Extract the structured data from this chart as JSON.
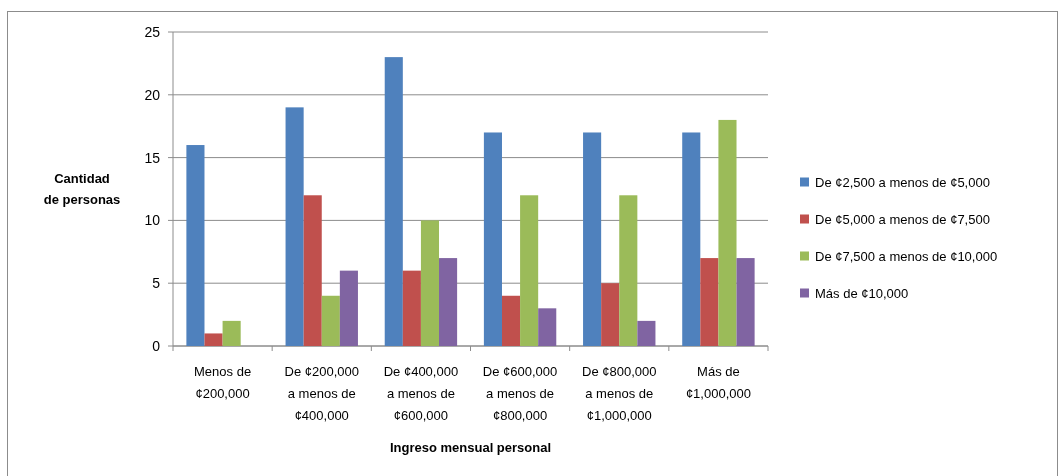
{
  "chart_data": {
    "type": "bar",
    "xlabel": "Ingreso mensual personal",
    "ylabel": "Cantidad de personas",
    "categories": [
      "Menos de ¢200,000",
      "De ¢200,000 a menos de ¢400,000",
      "De ¢400,000 a menos de ¢600,000",
      "De ¢600,000 a menos de ¢800,000",
      "De ¢800,000 a menos de ¢1,000,000",
      "Más de ¢1,000,000"
    ],
    "series": [
      {
        "name": "De ¢2,500 a menos de ¢5,000",
        "color": "#4f81bd",
        "values": [
          16,
          19,
          23,
          17,
          17,
          17
        ]
      },
      {
        "name": "De ¢5,000 a menos de ¢7,500",
        "color": "#c0504d",
        "values": [
          1,
          12,
          6,
          4,
          5,
          7
        ]
      },
      {
        "name": "De ¢7,500 a menos de ¢10,000",
        "color": "#9bbb59",
        "values": [
          2,
          4,
          10,
          12,
          12,
          18
        ]
      },
      {
        "name": "Más de ¢10,000",
        "color": "#8064a2",
        "values": [
          0,
          6,
          7,
          3,
          2,
          7
        ]
      }
    ],
    "ylim": [
      0,
      25
    ],
    "yticks": [
      0,
      5,
      10,
      15,
      20,
      25
    ],
    "grid": "y",
    "legend": "right"
  }
}
